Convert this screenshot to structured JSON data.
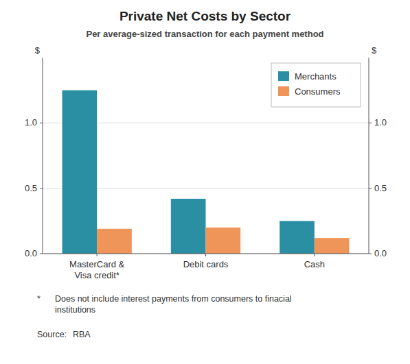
{
  "chart_data": {
    "type": "bar",
    "title": "Private Net Costs by Sector",
    "subtitle": "Per average-sized transaction for each payment method",
    "categories": [
      "MasterCard &\nVisa credit*",
      "Debit cards",
      "Cash"
    ],
    "series": [
      {
        "name": "Merchants",
        "color": "#2a8fa3",
        "values": [
          1.25,
          0.42,
          0.25
        ]
      },
      {
        "name": "Consumers",
        "color": "#f0955a",
        "values": [
          0.19,
          0.2,
          0.12
        ]
      }
    ],
    "ylim": [
      0,
      1.5
    ],
    "yticks": [
      {
        "value": 0,
        "label": "0.0"
      },
      0.5,
      {
        "value": 1,
        "label": "1.0"
      }
    ],
    "y2lim": [
      0,
      1.5
    ],
    "y2ticks": [
      {
        "value": 0,
        "label": "0.0"
      },
      0.5,
      {
        "value": 1,
        "label": "1.0"
      }
    ],
    "ylabel": "$",
    "y2label": "$",
    "annotations": [
      "*",
      "Does not include interest payments from consumers to finacial\ninstitutions",
      "Source:",
      "RBA"
    ],
    "grid": true,
    "legend": "upper right"
  }
}
